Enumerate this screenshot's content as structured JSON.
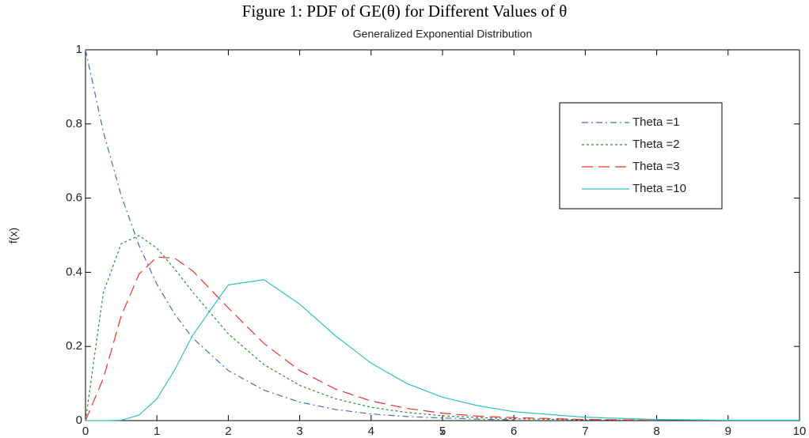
{
  "chart_data": {
    "type": "line",
    "figure_title": "Figure 1: PDF of GE(θ) for Different Values of θ",
    "title": "Generalized Exponential Distribution",
    "x_label": "x",
    "y_label": "f(x)",
    "x": [
      0,
      0.25,
      0.5,
      0.75,
      1,
      1.25,
      1.5,
      2,
      2.5,
      3,
      3.5,
      4,
      4.5,
      5,
      5.5,
      6,
      7,
      8,
      9,
      10
    ],
    "series": [
      {
        "name": "Theta =1",
        "color": "#4a6bb5",
        "dash": "dashdot",
        "values": [
          1,
          0.779,
          0.607,
          0.472,
          0.368,
          0.287,
          0.223,
          0.135,
          0.082,
          0.05,
          0.03,
          0.018,
          0.011,
          0.007,
          0.004,
          0.002,
          null,
          null,
          null,
          null
        ]
      },
      {
        "name": "Theta =2",
        "color": "#2e8b3a",
        "dash": "dotted",
        "values": [
          0,
          0.345,
          0.477,
          0.499,
          0.465,
          0.409,
          0.347,
          0.234,
          0.151,
          0.095,
          0.059,
          0.036,
          0.022,
          0.013,
          0.008,
          0.005,
          0.002,
          0.001,
          null,
          null
        ]
      },
      {
        "name": "Theta =3",
        "color": "#e8312c",
        "dash": "dashed",
        "values": [
          0,
          0.114,
          0.282,
          0.395,
          0.441,
          0.438,
          0.404,
          0.304,
          0.208,
          0.135,
          0.085,
          0.053,
          0.033,
          0.02,
          0.012,
          0.008,
          0.003,
          0.001,
          null,
          null
        ]
      },
      {
        "name": "Theta =10",
        "color": "#2ec4c0",
        "dash": "solid",
        "values": [
          0,
          0,
          0.001,
          0.015,
          0.059,
          0.137,
          0.23,
          0.366,
          0.38,
          0.314,
          0.229,
          0.155,
          0.1,
          0.063,
          0.04,
          0.024,
          0.009,
          0.003,
          0.001,
          0.001
        ]
      }
    ],
    "xlim": [
      0,
      10
    ],
    "ylim": [
      0,
      1
    ],
    "xticks": [
      0,
      1,
      2,
      3,
      4,
      5,
      6,
      7,
      8,
      9,
      10
    ],
    "yticks": [
      0,
      0.2,
      0.4,
      0.6,
      0.8,
      1
    ],
    "grid": false,
    "legend": "upper right"
  }
}
